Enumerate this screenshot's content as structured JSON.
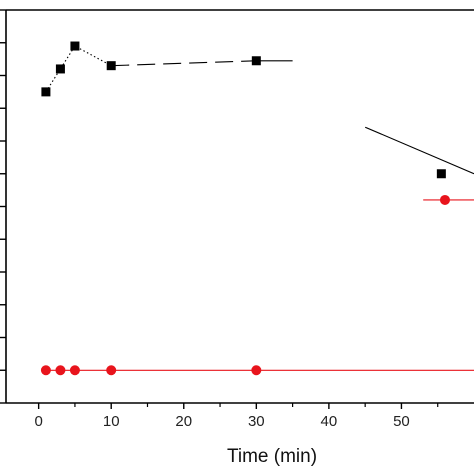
{
  "chart_data": {
    "type": "scatter",
    "title": "",
    "xlabel": "Time (min)",
    "ylabel": "",
    "xlim": [
      -4.5,
      60
    ],
    "ylim": [
      0,
      12
    ],
    "x_ticks": [
      0,
      10,
      20,
      30,
      40,
      50
    ],
    "x_tick_labels": [
      "0",
      "10",
      "20",
      "30",
      "40",
      "50"
    ],
    "grid": false,
    "legend": "none",
    "series": [
      {
        "marker": "square",
        "color": "#000000",
        "line_color": "#000000",
        "points": [
          [
            1,
            9.5
          ],
          [
            3,
            10.2
          ],
          [
            5,
            10.9
          ],
          [
            10,
            10.3
          ],
          [
            30,
            10.45
          ],
          [
            55.5,
            7.0
          ]
        ],
        "connectors": [
          {
            "style": "dotted",
            "x": [
              1,
              3,
              5,
              10
            ]
          },
          {
            "style": "dashed",
            "x": [
              10,
              30
            ]
          },
          {
            "style": "solid",
            "x": [
              30,
              35
            ]
          },
          {
            "style": "solid",
            "x": [
              45,
              60
            ]
          }
        ]
      },
      {
        "marker": "circle",
        "color": "#e8141c",
        "line_color": "#e8141c",
        "points": [
          [
            1,
            1.0
          ],
          [
            3,
            1.0
          ],
          [
            5,
            1.0
          ],
          [
            10,
            1.0
          ],
          [
            30,
            1.0
          ],
          [
            56,
            6.2
          ]
        ],
        "connectors": [
          {
            "style": "solid",
            "x": [
              1,
              60
            ]
          },
          {
            "style": "solid",
            "x": [
              53,
              60
            ]
          }
        ]
      }
    ]
  }
}
